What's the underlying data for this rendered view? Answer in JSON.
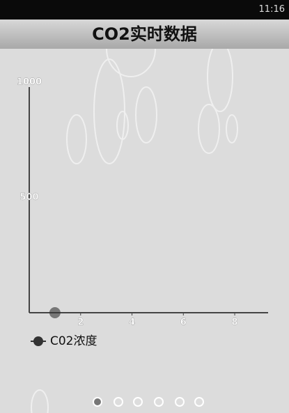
{
  "status_bar": {
    "time": "11:16"
  },
  "header": {
    "title": "CO2实时数据"
  },
  "chart_data": {
    "type": "scatter",
    "x": [
      1
    ],
    "series": [
      {
        "name": "C02浓度",
        "color": "#333333",
        "values": [
          0
        ]
      }
    ],
    "xlim": [
      0,
      9.3
    ],
    "xticks": [
      2,
      4,
      6,
      8
    ],
    "ylim": [
      0,
      1000
    ],
    "yticks": [
      500,
      1000
    ]
  }
}
